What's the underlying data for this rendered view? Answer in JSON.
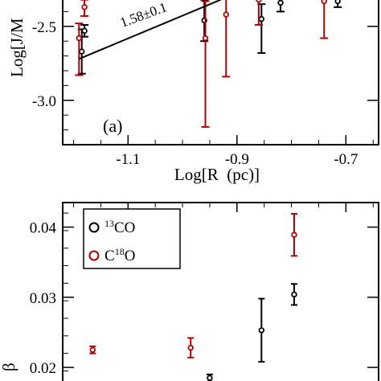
{
  "colors": {
    "series_13co": "#000000",
    "series_c18o": "#b00000",
    "axes": "#000000"
  },
  "chart_data": [
    {
      "type": "scatter",
      "panel_label": "(a)",
      "xlabel": "Log[R  (pc)]",
      "ylabel": "Log[J/M",
      "xlim": [
        -1.22,
        -0.64
      ],
      "ylim": [
        -3.3,
        -2.3
      ],
      "x_ticks": [
        "-1.1",
        "-0.9",
        "-0.7"
      ],
      "x_tick_values": [
        -1.1,
        -0.9,
        -0.7
      ],
      "y_ticks": [
        "-2.5",
        "-3.0"
      ],
      "y_tick_values": [
        -2.5,
        -3.0
      ],
      "fit_label": "1.58±0.1",
      "fit_line": {
        "x": [
          -1.19,
          -0.93
        ],
        "y": [
          -2.72,
          -2.32
        ]
      },
      "series": [
        {
          "name": "13CO",
          "color": "#000000",
          "points": [
            {
              "x": -1.185,
              "y": -2.67,
              "err_low": 0.15,
              "err_high": 0.15
            },
            {
              "x": -1.18,
              "y": -2.53,
              "err_low": 0.04,
              "err_high": 0.04
            },
            {
              "x": -0.96,
              "y": -2.46,
              "err_low": 0.14,
              "err_high": 0.14
            },
            {
              "x": -0.855,
              "y": -2.45,
              "err_low": 0.23,
              "err_high": 0.1
            },
            {
              "x": -0.82,
              "y": -2.34,
              "err_low": 0.06,
              "err_high": 0.05
            },
            {
              "x": -0.715,
              "y": -2.33,
              "err_low": 0.04,
              "err_high": 0.05
            }
          ]
        },
        {
          "name": "C18O",
          "color": "#b00000",
          "points": [
            {
              "x": -1.19,
              "y": -2.58,
              "err_low": 0.25,
              "err_high": 0.1
            },
            {
              "x": -1.18,
              "y": -2.37,
              "err_low": 0.06,
              "err_high": 0.05
            },
            {
              "x": -0.958,
              "y": -2.58,
              "err_low": 0.6,
              "err_high": 0.25
            },
            {
              "x": -0.92,
              "y": -2.42,
              "err_low": 0.42,
              "err_high": 0.12
            },
            {
              "x": -0.86,
              "y": -2.32,
              "err_low": 0.17,
              "err_high": 0.05
            },
            {
              "x": -0.74,
              "y": -2.33,
              "err_low": 0.25,
              "err_high": 0.05
            }
          ]
        }
      ]
    },
    {
      "type": "scatter",
      "xlabel": "",
      "ylabel": "β",
      "xlim": [
        -1.22,
        -0.64
      ],
      "ylim": [
        0.016,
        0.0435
      ],
      "y_ticks": [
        "0.04",
        "0.03",
        "0.02"
      ],
      "y_tick_values": [
        0.04,
        0.03,
        0.02
      ],
      "legend": [
        {
          "text": "13CO",
          "sup": "13",
          "base": "CO",
          "color": "#000000"
        },
        {
          "text": "C18O",
          "pre": "C",
          "sup": "18",
          "base": "O",
          "color": "#b00000"
        }
      ],
      "series": [
        {
          "name": "13CO",
          "color": "#000000",
          "points": [
            {
              "x": -0.95,
              "y": 0.0185,
              "err": 0.0005
            },
            {
              "x": -0.855,
              "y": 0.0253,
              "err": 0.0045
            },
            {
              "x": -0.795,
              "y": 0.0304,
              "err": 0.0015
            }
          ]
        },
        {
          "name": "C18O",
          "color": "#b00000",
          "points": [
            {
              "x": -1.165,
              "y": 0.0225,
              "err": 0.0005
            },
            {
              "x": -0.985,
              "y": 0.0228,
              "err": 0.0014
            },
            {
              "x": -0.795,
              "y": 0.0389,
              "err": 0.003
            }
          ]
        }
      ]
    }
  ]
}
